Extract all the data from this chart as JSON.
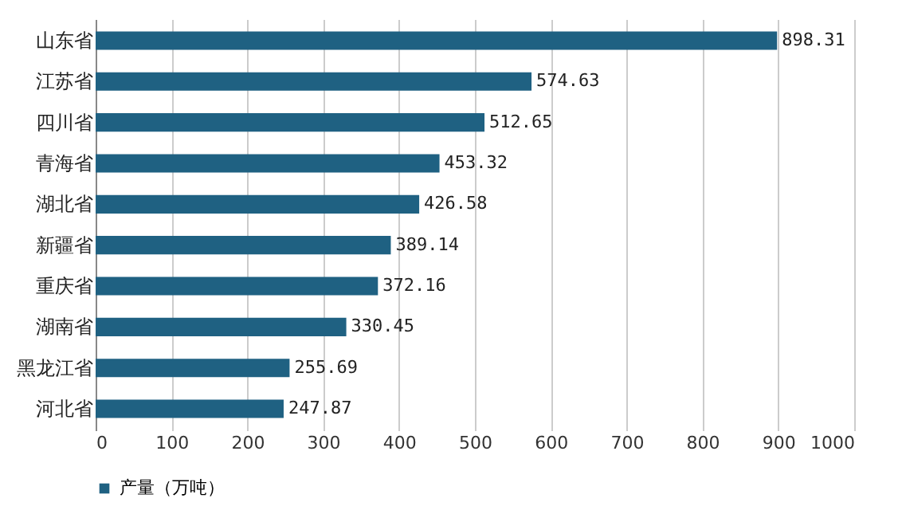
{
  "chart_data": {
    "type": "bar",
    "orientation": "horizontal",
    "categories": [
      "山东省",
      "江苏省",
      "四川省",
      "青海省",
      "湖北省",
      "新疆省",
      "重庆省",
      "湖南省",
      "黑龙江省",
      "河北省"
    ],
    "series": [
      {
        "name": "产量（万吨）",
        "color": "#1f6182",
        "values": [
          898.31,
          574.63,
          512.65,
          453.32,
          426.58,
          389.14,
          372.16,
          330.45,
          255.69,
          247.87
        ]
      }
    ],
    "xlim": [
      0,
      1000
    ],
    "xticks": [
      0,
      100,
      200,
      300,
      400,
      500,
      600,
      700,
      800,
      900,
      1000
    ],
    "grid": "x",
    "legend": "bottom",
    "data_labels": true
  }
}
